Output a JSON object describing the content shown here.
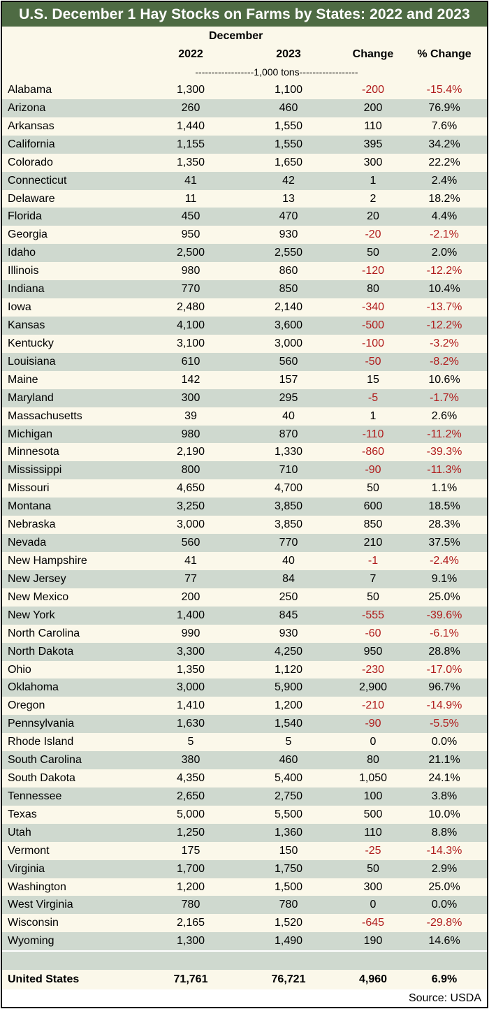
{
  "title": "U.S. December 1 Hay Stocks on Farms by States: 2022 and 2023",
  "header": {
    "group": "December",
    "col_2022": "2022",
    "col_2023": "2023",
    "col_change": "Change",
    "col_pct": "% Change",
    "units": "------------------1,000 tons------------------"
  },
  "colors": {
    "title_bg": "#4e6b43",
    "row_light": "#fbf8ea",
    "row_dark": "#cfd9cf",
    "negative": "#b01c1c"
  },
  "rows": [
    {
      "state": "Alabama",
      "y2022": "1,300",
      "y2023": "1,100",
      "change": "-200",
      "pct": "-15.4%"
    },
    {
      "state": "Arizona",
      "y2022": "260",
      "y2023": "460",
      "change": "200",
      "pct": "76.9%"
    },
    {
      "state": "Arkansas",
      "y2022": "1,440",
      "y2023": "1,550",
      "change": "110",
      "pct": "7.6%"
    },
    {
      "state": "California",
      "y2022": "1,155",
      "y2023": "1,550",
      "change": "395",
      "pct": "34.2%"
    },
    {
      "state": "Colorado",
      "y2022": "1,350",
      "y2023": "1,650",
      "change": "300",
      "pct": "22.2%"
    },
    {
      "state": "Connecticut",
      "y2022": "41",
      "y2023": "42",
      "change": "1",
      "pct": "2.4%"
    },
    {
      "state": "Delaware",
      "y2022": "11",
      "y2023": "13",
      "change": "2",
      "pct": "18.2%"
    },
    {
      "state": "Florida",
      "y2022": "450",
      "y2023": "470",
      "change": "20",
      "pct": "4.4%"
    },
    {
      "state": "Georgia",
      "y2022": "950",
      "y2023": "930",
      "change": "-20",
      "pct": "-2.1%"
    },
    {
      "state": "Idaho",
      "y2022": "2,500",
      "y2023": "2,550",
      "change": "50",
      "pct": "2.0%"
    },
    {
      "state": "Illinois",
      "y2022": "980",
      "y2023": "860",
      "change": "-120",
      "pct": "-12.2%"
    },
    {
      "state": "Indiana",
      "y2022": "770",
      "y2023": "850",
      "change": "80",
      "pct": "10.4%"
    },
    {
      "state": "Iowa",
      "y2022": "2,480",
      "y2023": "2,140",
      "change": "-340",
      "pct": "-13.7%"
    },
    {
      "state": "Kansas",
      "y2022": "4,100",
      "y2023": "3,600",
      "change": "-500",
      "pct": "-12.2%"
    },
    {
      "state": "Kentucky",
      "y2022": "3,100",
      "y2023": "3,000",
      "change": "-100",
      "pct": "-3.2%"
    },
    {
      "state": "Louisiana",
      "y2022": "610",
      "y2023": "560",
      "change": "-50",
      "pct": "-8.2%"
    },
    {
      "state": "Maine",
      "y2022": "142",
      "y2023": "157",
      "change": "15",
      "pct": "10.6%"
    },
    {
      "state": "Maryland",
      "y2022": "300",
      "y2023": "295",
      "change": "-5",
      "pct": "-1.7%"
    },
    {
      "state": "Massachusetts",
      "y2022": "39",
      "y2023": "40",
      "change": "1",
      "pct": "2.6%"
    },
    {
      "state": "Michigan",
      "y2022": "980",
      "y2023": "870",
      "change": "-110",
      "pct": "-11.2%"
    },
    {
      "state": "Minnesota",
      "y2022": "2,190",
      "y2023": "1,330",
      "change": "-860",
      "pct": "-39.3%"
    },
    {
      "state": "Mississippi",
      "y2022": "800",
      "y2023": "710",
      "change": "-90",
      "pct": "-11.3%"
    },
    {
      "state": "Missouri",
      "y2022": "4,650",
      "y2023": "4,700",
      "change": "50",
      "pct": "1.1%"
    },
    {
      "state": "Montana",
      "y2022": "3,250",
      "y2023": "3,850",
      "change": "600",
      "pct": "18.5%"
    },
    {
      "state": "Nebraska",
      "y2022": "3,000",
      "y2023": "3,850",
      "change": "850",
      "pct": "28.3%"
    },
    {
      "state": "Nevada",
      "y2022": "560",
      "y2023": "770",
      "change": "210",
      "pct": "37.5%"
    },
    {
      "state": "New Hampshire",
      "y2022": "41",
      "y2023": "40",
      "change": "-1",
      "pct": "-2.4%"
    },
    {
      "state": "New Jersey",
      "y2022": "77",
      "y2023": "84",
      "change": "7",
      "pct": "9.1%"
    },
    {
      "state": "New Mexico",
      "y2022": "200",
      "y2023": "250",
      "change": "50",
      "pct": "25.0%"
    },
    {
      "state": "New York",
      "y2022": "1,400",
      "y2023": "845",
      "change": "-555",
      "pct": "-39.6%"
    },
    {
      "state": "North Carolina",
      "y2022": "990",
      "y2023": "930",
      "change": "-60",
      "pct": "-6.1%"
    },
    {
      "state": "North Dakota",
      "y2022": "3,300",
      "y2023": "4,250",
      "change": "950",
      "pct": "28.8%"
    },
    {
      "state": "Ohio",
      "y2022": "1,350",
      "y2023": "1,120",
      "change": "-230",
      "pct": "-17.0%"
    },
    {
      "state": "Oklahoma",
      "y2022": "3,000",
      "y2023": "5,900",
      "change": "2,900",
      "pct": "96.7%"
    },
    {
      "state": "Oregon",
      "y2022": "1,410",
      "y2023": "1,200",
      "change": "-210",
      "pct": "-14.9%"
    },
    {
      "state": "Pennsylvania",
      "y2022": "1,630",
      "y2023": "1,540",
      "change": "-90",
      "pct": "-5.5%"
    },
    {
      "state": "Rhode Island",
      "y2022": "5",
      "y2023": "5",
      "change": "0",
      "pct": "0.0%"
    },
    {
      "state": "South Carolina",
      "y2022": "380",
      "y2023": "460",
      "change": "80",
      "pct": "21.1%"
    },
    {
      "state": "South Dakota",
      "y2022": "4,350",
      "y2023": "5,400",
      "change": "1,050",
      "pct": "24.1%"
    },
    {
      "state": "Tennessee",
      "y2022": "2,650",
      "y2023": "2,750",
      "change": "100",
      "pct": "3.8%"
    },
    {
      "state": "Texas",
      "y2022": "5,000",
      "y2023": "5,500",
      "change": "500",
      "pct": "10.0%"
    },
    {
      "state": "Utah",
      "y2022": "1,250",
      "y2023": "1,360",
      "change": "110",
      "pct": "8.8%"
    },
    {
      "state": "Vermont",
      "y2022": "175",
      "y2023": "150",
      "change": "-25",
      "pct": "-14.3%"
    },
    {
      "state": "Virginia",
      "y2022": "1,700",
      "y2023": "1,750",
      "change": "50",
      "pct": "2.9%"
    },
    {
      "state": "Washington",
      "y2022": "1,200",
      "y2023": "1,500",
      "change": "300",
      "pct": "25.0%"
    },
    {
      "state": "West Virginia",
      "y2022": "780",
      "y2023": "780",
      "change": "0",
      "pct": "0.0%"
    },
    {
      "state": "Wisconsin",
      "y2022": "2,165",
      "y2023": "1,520",
      "change": "-645",
      "pct": "-29.8%"
    },
    {
      "state": "Wyoming",
      "y2022": "1,300",
      "y2023": "1,490",
      "change": "190",
      "pct": "14.6%"
    }
  ],
  "total": {
    "state": "United States",
    "y2022": "71,761",
    "y2023": "76,721",
    "change": "4,960",
    "pct": "6.9%"
  },
  "source": "Source: USDA"
}
